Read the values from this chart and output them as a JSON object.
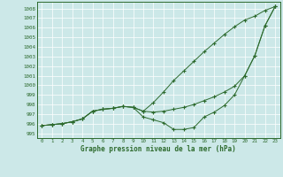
{
  "title": "Graphe pression niveau de la mer (hPa)",
  "bg_color": "#cce8e8",
  "grid_color": "#ffffff",
  "line_color": "#2d6a2d",
  "xlim": [
    -0.5,
    23.5
  ],
  "ylim": [
    994.5,
    1008.7
  ],
  "yticks": [
    995,
    996,
    997,
    998,
    999,
    1000,
    1001,
    1002,
    1003,
    1004,
    1005,
    1006,
    1007,
    1008
  ],
  "xticks": [
    0,
    1,
    2,
    3,
    4,
    5,
    6,
    7,
    8,
    9,
    10,
    11,
    12,
    13,
    14,
    15,
    16,
    17,
    18,
    19,
    20,
    21,
    22,
    23
  ],
  "line1_y": [
    995.8,
    995.9,
    996.0,
    996.2,
    996.5,
    997.3,
    997.5,
    997.6,
    997.8,
    997.7,
    997.3,
    998.2,
    999.3,
    1000.5,
    1001.5,
    1002.5,
    1003.5,
    1004.4,
    1005.3,
    1006.1,
    1006.8,
    1007.2,
    1007.8,
    1008.2
  ],
  "line2_y": [
    995.8,
    995.9,
    996.0,
    996.2,
    996.5,
    997.3,
    997.5,
    997.6,
    997.8,
    997.7,
    997.3,
    997.2,
    997.3,
    997.5,
    997.7,
    998.0,
    998.4,
    998.8,
    999.3,
    999.9,
    1001.0,
    1003.1,
    1006.2,
    1008.2
  ],
  "line3_y": [
    995.8,
    995.9,
    996.0,
    996.2,
    996.5,
    997.3,
    997.5,
    997.6,
    997.8,
    997.7,
    996.7,
    996.4,
    996.1,
    995.4,
    995.4,
    995.6,
    996.7,
    997.2,
    997.9,
    999.0,
    1001.0,
    1003.1,
    1006.2,
    1008.2
  ]
}
